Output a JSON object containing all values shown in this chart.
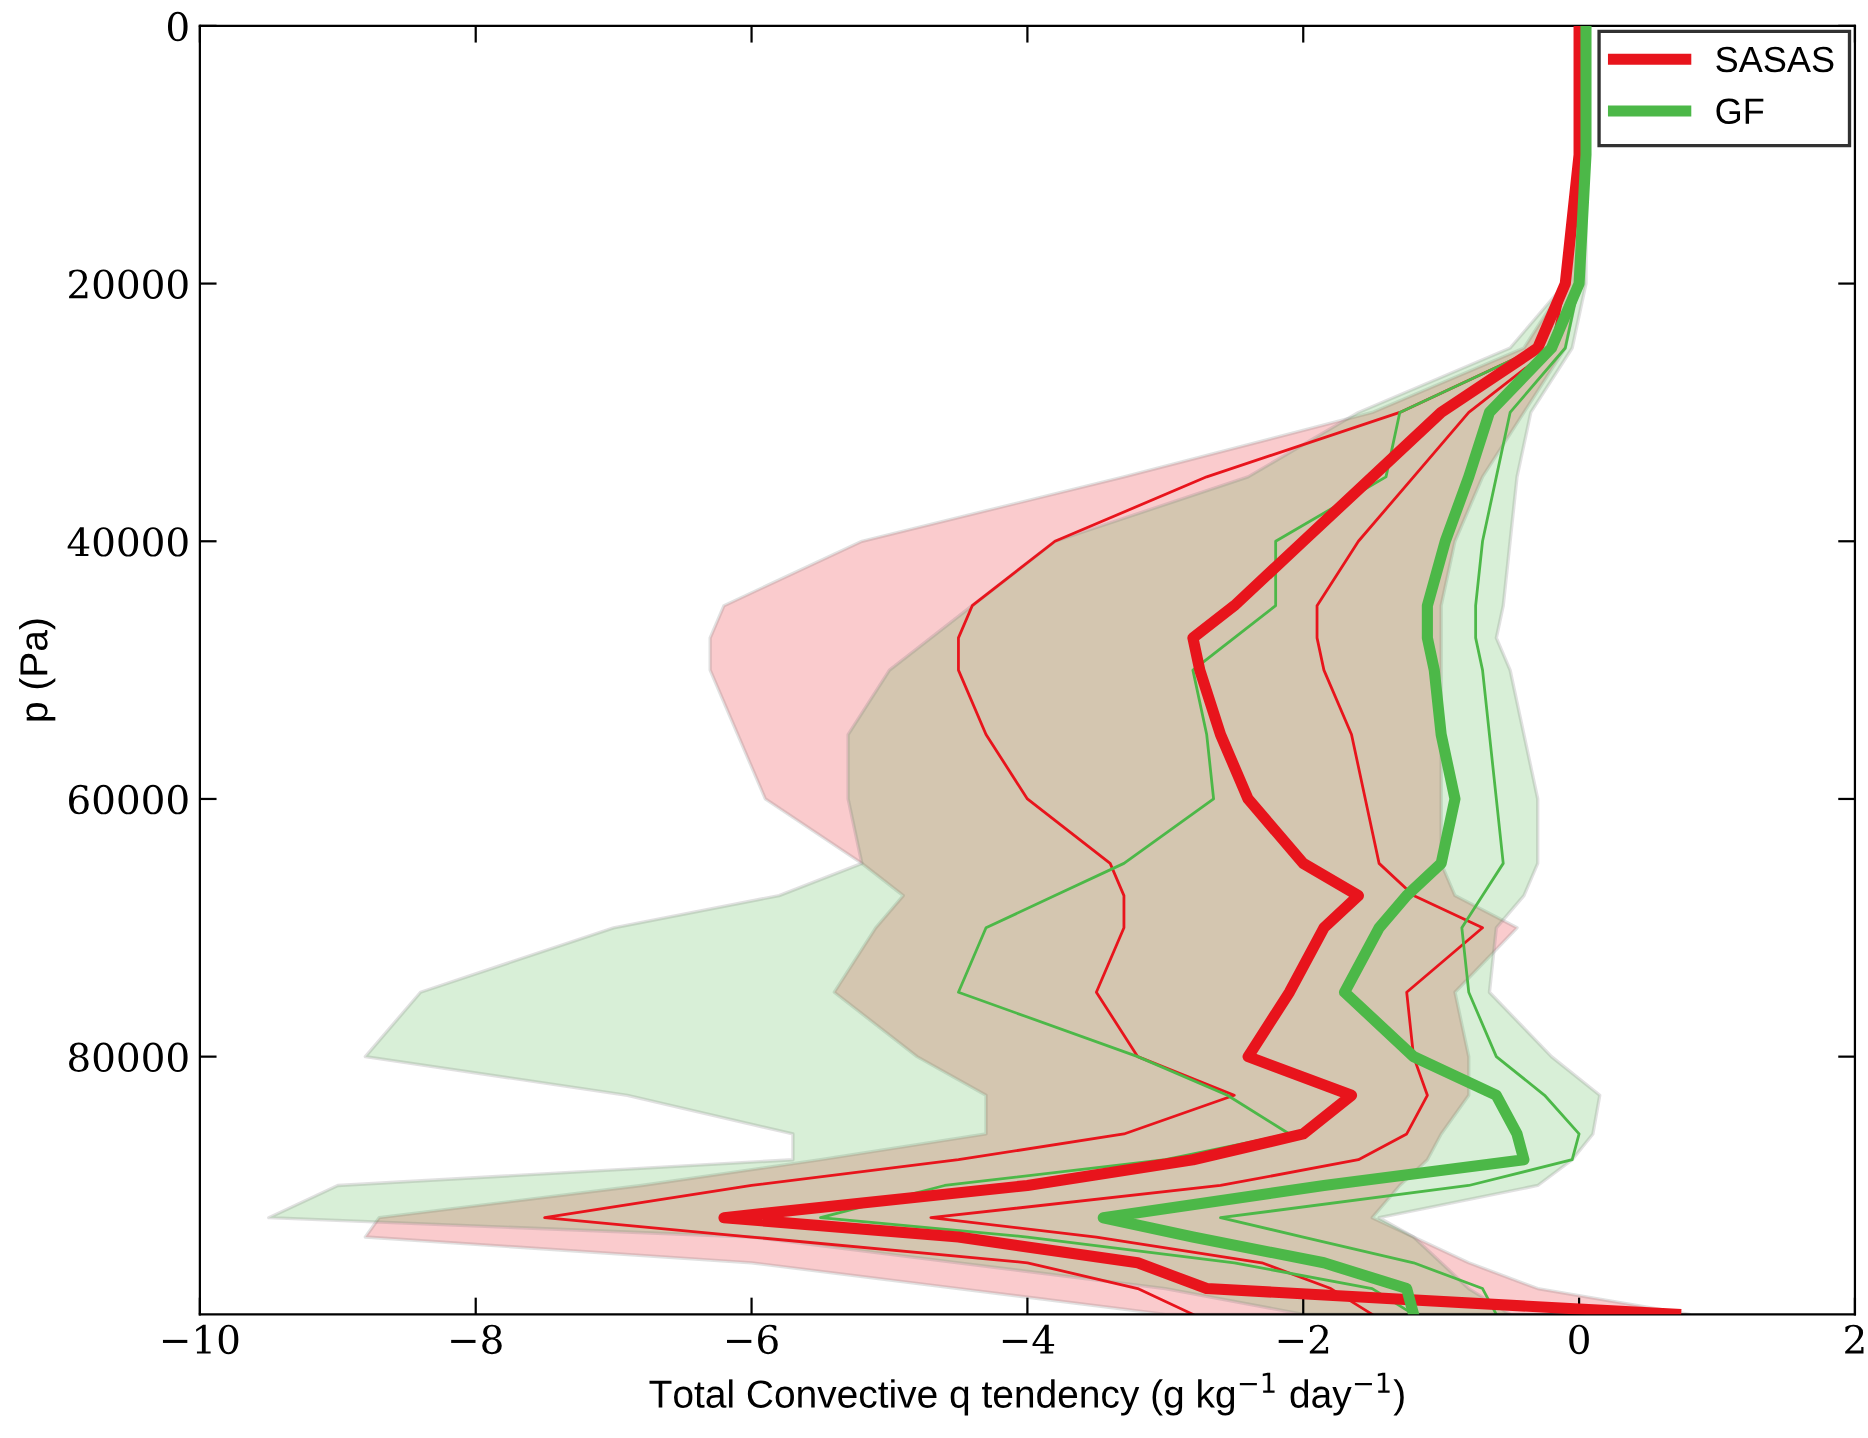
{
  "chart_data": {
    "type": "line",
    "orientation": "horizontal",
    "xlabel": "Total Convective q tendency (g kg$^{−1}$ day$^{−1}$)",
    "ylabel": "p (Pa)",
    "x": [
      0,
      10000,
      20000,
      25000,
      30000,
      35000,
      40000,
      45000,
      47500,
      50000,
      55000,
      60000,
      65000,
      67500,
      70000,
      75000,
      80000,
      83000,
      86000,
      88000,
      90000,
      92500,
      94000,
      96000,
      98000,
      100000
    ],
    "series": [
      {
        "name": "SASAS",
        "color": "#e8141c",
        "values": [
          0,
          0,
          -0.1,
          -0.3,
          -1.0,
          -1.5,
          -2.0,
          -2.5,
          -2.8,
          -2.75,
          -2.6,
          -2.4,
          -2.0,
          -1.6,
          -1.85,
          -2.1,
          -2.4,
          -1.65,
          -2.0,
          -2.8,
          -4.0,
          -6.2,
          -4.5,
          -3.2,
          -2.7,
          0.7
        ],
        "lower": [
          0,
          0,
          -0.1,
          -0.4,
          -1.5,
          -3.3,
          -5.2,
          -6.2,
          -6.3,
          -6.3,
          -6.1,
          -5.9,
          -5.2,
          -4.9,
          -5.1,
          -5.4,
          -4.8,
          -4.3,
          -4.3,
          -5.5,
          -6.8,
          -8.7,
          -8.8,
          -6.0,
          -4.5,
          -3.0
        ],
        "upper": [
          0,
          0,
          0,
          -0.1,
          -0.4,
          -0.7,
          -0.9,
          -1.0,
          -1.0,
          -1.0,
          -1.0,
          -1.0,
          -1.0,
          -0.9,
          -0.45,
          -0.9,
          -0.8,
          -0.8,
          -1.0,
          -1.1,
          -1.3,
          -1.5,
          -1.2,
          -0.8,
          -0.3,
          0.8
        ]
      },
      {
        "color": "#e8141c",
        "values": [
          0,
          0,
          -0.1,
          -0.3,
          -1.3,
          -2.7,
          -3.8,
          -4.4,
          -4.5,
          -4.5,
          -4.3,
          -4.0,
          -3.4,
          -3.3,
          -3.3,
          -3.5,
          -3.2,
          -2.5,
          -3.3,
          -4.5,
          -6.0,
          -7.5,
          -6.0,
          -4.0,
          -3.2,
          -2.8
        ]
      },
      {
        "color": "#e8141c",
        "values": [
          0,
          0,
          -0.1,
          -0.2,
          -0.8,
          -1.2,
          -1.6,
          -1.9,
          -1.9,
          -1.85,
          -1.65,
          -1.55,
          -1.45,
          -1.2,
          -0.7,
          -1.25,
          -1.2,
          -1.1,
          -1.25,
          -1.6,
          -2.6,
          -4.7,
          -3.5,
          -2.3,
          -1.8,
          -1.5
        ]
      },
      {
        "name": "GF",
        "color": "#4cb848",
        "values": [
          0.05,
          0.05,
          0,
          -0.2,
          -0.65,
          -0.8,
          -0.97,
          -1.1,
          -1.1,
          -1.05,
          -1.0,
          -0.9,
          -1.0,
          -1.25,
          -1.45,
          -1.7,
          -1.2,
          -0.6,
          -0.45,
          -0.4,
          -1.85,
          -3.45,
          -2.8,
          -1.85,
          -1.25,
          -1.2
        ],
        "lower": [
          0,
          0,
          -0.1,
          -0.5,
          -1.6,
          -2.4,
          -3.8,
          -4.4,
          -4.7,
          -5.0,
          -5.3,
          -5.3,
          -5.2,
          -5.8,
          -7.0,
          -8.4,
          -8.8,
          -6.9,
          -5.7,
          -5.7,
          -9.0,
          -9.5,
          -6.0,
          -4.5,
          -3.0,
          -2.0
        ],
        "upper": [
          0.05,
          0.05,
          0.05,
          -0.05,
          -0.35,
          -0.45,
          -0.5,
          -0.55,
          -0.6,
          -0.5,
          -0.4,
          -0.3,
          -0.3,
          -0.4,
          -0.6,
          -0.65,
          -0.2,
          0.15,
          0.1,
          -0.05,
          -0.3,
          -1.45,
          -1.2,
          -1.0,
          -0.8,
          -0.5
        ]
      },
      {
        "color": "#4cb848",
        "values": [
          0,
          0,
          -0.1,
          -0.3,
          -1.3,
          -1.4,
          -2.2,
          -2.2,
          -2.5,
          -2.8,
          -2.7,
          -2.65,
          -3.3,
          -3.8,
          -4.3,
          -4.5,
          -3.2,
          -2.55,
          -2.1,
          -3.0,
          -4.6,
          -5.5,
          -4.0,
          -2.5,
          -1.5,
          -1.2
        ]
      },
      {
        "color": "#4cb848",
        "values": [
          0,
          0,
          0,
          -0.1,
          -0.5,
          -0.6,
          -0.7,
          -0.75,
          -0.75,
          -0.7,
          -0.65,
          -0.6,
          -0.55,
          -0.7,
          -0.85,
          -0.8,
          -0.6,
          -0.25,
          0.0,
          -0.05,
          -0.8,
          -2.6,
          -2.0,
          -1.2,
          -0.7,
          -0.6
        ]
      }
    ],
    "xlim": [
      -10,
      2
    ],
    "xticks": [
      {
        "value": -10,
        "label": "−10"
      },
      {
        "value": -8,
        "label": "−8"
      },
      {
        "value": -6,
        "label": "−6"
      },
      {
        "value": -4,
        "label": "−4"
      },
      {
        "value": -2,
        "label": "−2"
      },
      0,
      2
    ],
    "ylim": [
      100000,
      0
    ],
    "yticks": [
      0,
      20000,
      40000,
      60000,
      80000
    ],
    "legend": "top right",
    "grid": false,
    "marker": "none",
    "line_style": "solid"
  }
}
